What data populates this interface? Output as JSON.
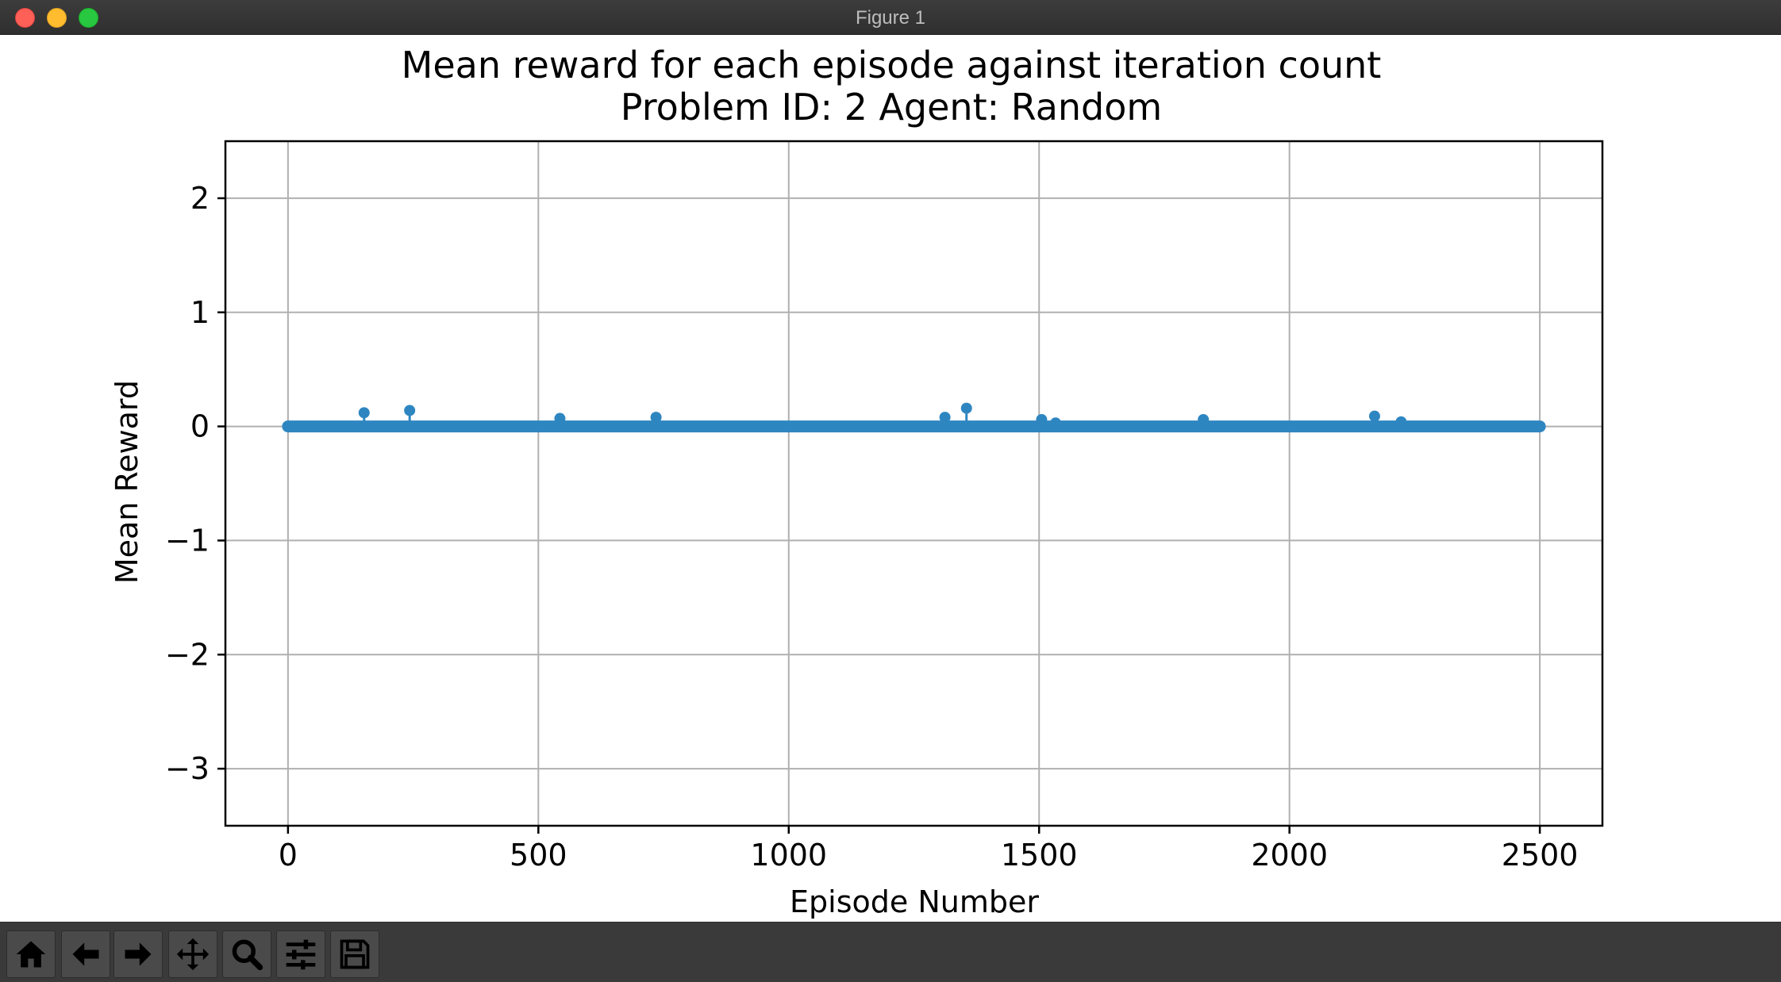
{
  "window": {
    "title": "Figure 1"
  },
  "toolbar": {
    "tools": [
      {
        "name": "home-icon"
      },
      {
        "name": "back-icon"
      },
      {
        "name": "forward-icon"
      },
      {
        "name": "pan-icon"
      },
      {
        "name": "zoom-icon"
      },
      {
        "name": "configure-icon"
      },
      {
        "name": "save-icon"
      }
    ]
  },
  "chart_data": {
    "type": "scatter",
    "title": "Mean reward for each episode against iteration count",
    "subtitle": "Problem ID: 2 Agent: Random",
    "xlabel": "Episode Number",
    "ylabel": "Mean Reward",
    "xlim": [
      -125,
      2625
    ],
    "ylim": [
      -3.5,
      2.5
    ],
    "xticks": [
      0,
      500,
      1000,
      1500,
      2000,
      2500
    ],
    "yticks": [
      2,
      1,
      0,
      -1,
      -2,
      -3
    ],
    "xtick_labels": [
      "0",
      "500",
      "1000",
      "1500",
      "2000",
      "2500"
    ],
    "ytick_labels": [
      "2",
      "1",
      "0",
      "−1",
      "−2",
      "−3"
    ],
    "grid": true,
    "color": "#2e86c1",
    "series": [
      {
        "baseline": {
          "x_start": 0,
          "x_end": 2500,
          "y": 0
        },
        "points": [
          {
            "x": 152,
            "y": 0.12
          },
          {
            "x": 243,
            "y": 0.14
          },
          {
            "x": 543,
            "y": 0.07
          },
          {
            "x": 735,
            "y": 0.08
          },
          {
            "x": 1312,
            "y": 0.08
          },
          {
            "x": 1355,
            "y": 0.16
          },
          {
            "x": 1505,
            "y": 0.06
          },
          {
            "x": 1533,
            "y": 0.03
          },
          {
            "x": 1828,
            "y": 0.06
          },
          {
            "x": 2170,
            "y": 0.09
          },
          {
            "x": 2223,
            "y": 0.04
          }
        ]
      }
    ]
  }
}
